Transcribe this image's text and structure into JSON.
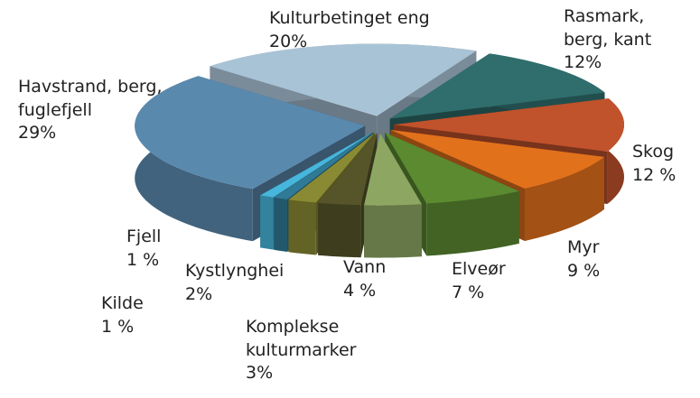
{
  "chart_data": {
    "type": "pie3d",
    "categories": [
      "Kulturbetinget eng",
      "Rasmark, berg, kant",
      "Skog",
      "Myr",
      "Elveør",
      "Vann",
      "Komplekse kulturmarker",
      "Kystlynghei",
      "Fjell",
      "Kilde",
      "Havstrand, berg, fuglefjell"
    ],
    "values": [
      20,
      12,
      12,
      9,
      7,
      4,
      3,
      2,
      1,
      1,
      29
    ],
    "value_labels": [
      "20%",
      "12%",
      "12 %",
      "9 %",
      "7 %",
      "4 %",
      "3%",
      "2%",
      "1 %",
      "1 %",
      "29%"
    ],
    "colors": [
      "#a9c3d6",
      "#2f6e6c",
      "#c0522c",
      "#e2711c",
      "#5b8a30",
      "#8da763",
      "#56552a",
      "#8a8a34",
      "#2f7a96",
      "#47b6dc",
      "#5a89ae"
    ]
  }
}
